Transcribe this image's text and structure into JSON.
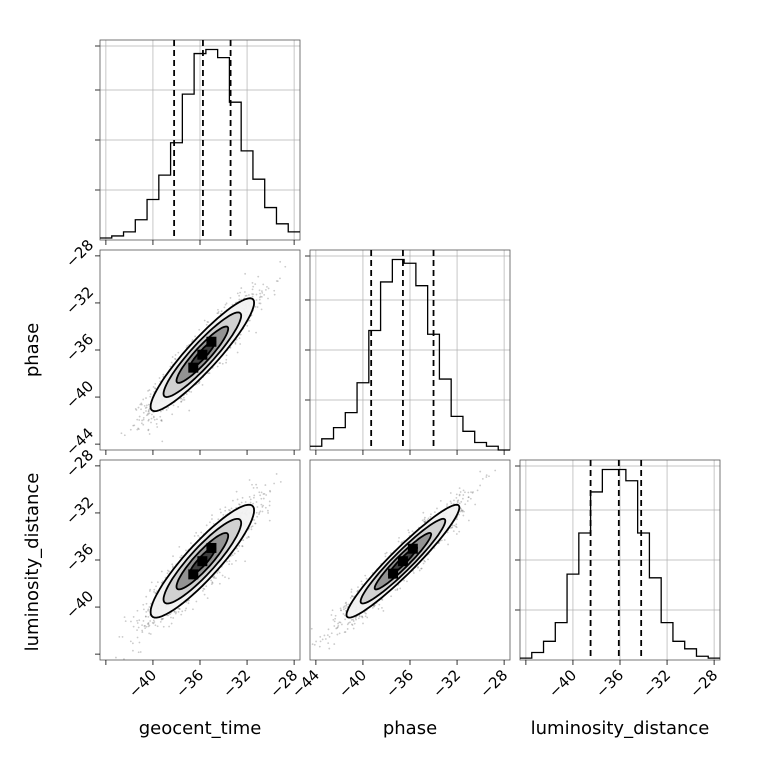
{
  "chart_data": {
    "type": "corner",
    "parameters": [
      "geocent_time",
      "phase",
      "luminosity_distance"
    ],
    "axis_range": [
      -44.5,
      -27.5
    ],
    "tick_values": [
      -44,
      -40,
      -36,
      -32,
      -28
    ],
    "tick_labels": [
      "−44",
      "−40",
      "−36",
      "−32",
      "−28"
    ],
    "grid": true,
    "diagonal": [
      {
        "parameter": "geocent_time",
        "bin_edges": [
          -44.5,
          -43.5,
          -42.5,
          -41.5,
          -40.5,
          -39.5,
          -38.5,
          -37.5,
          -36.5,
          -35.5,
          -34.5,
          -33.5,
          -32.5,
          -31.5,
          -30.5,
          -29.5,
          -28.5,
          -27.5
        ],
        "counts": [
          0.5,
          1,
          2,
          5,
          10,
          16,
          24,
          36,
          46,
          47,
          45,
          34,
          22,
          15,
          8,
          4,
          2
        ],
        "quantiles": [
          -38.2,
          -35.75,
          -33.4
        ]
      },
      {
        "parameter": "phase",
        "bin_edges": [
          -44.5,
          -43.5,
          -42.5,
          -41.5,
          -40.5,
          -39.5,
          -38.5,
          -37.5,
          -36.5,
          -35.5,
          -34.5,
          -33.5,
          -32.5,
          -31.5,
          -30.5,
          -29.5,
          -28.5,
          -27.5
        ],
        "counts": [
          1,
          3,
          6,
          10,
          18,
          32,
          45,
          51,
          50,
          44,
          31,
          19,
          9,
          5,
          2,
          1,
          0
        ],
        "quantiles": [
          -39.3,
          -36.6,
          -34.0
        ]
      },
      {
        "parameter": "luminosity_distance",
        "bin_edges": [
          -44.5,
          -43.5,
          -42.5,
          -41.5,
          -40.5,
          -39.5,
          -38.5,
          -37.5,
          -36.5,
          -35.5,
          -34.5,
          -33.5,
          -32.5,
          -31.5,
          -30.5,
          -29.5,
          -28.5,
          -27.5
        ],
        "counts": [
          0.5,
          2,
          5,
          10,
          23,
          34,
          45,
          51,
          51,
          48,
          34,
          22,
          10,
          5,
          3,
          1,
          0.5
        ],
        "quantiles": [
          -38.5,
          -36.1,
          -34.2
        ]
      }
    ],
    "pairs": [
      {
        "x": "geocent_time",
        "y": "phase",
        "mean": [
          -35.8,
          -36.4
        ],
        "sd": [
          2.2,
          2.4
        ],
        "rho": 0.92
      },
      {
        "x": "geocent_time",
        "y": "luminosity_distance",
        "mean": [
          -35.8,
          -36.1
        ],
        "sd": [
          2.2,
          2.4
        ],
        "rho": 0.9
      },
      {
        "x": "phase",
        "y": "luminosity_distance",
        "mean": [
          -36.6,
          -36.1
        ],
        "sd": [
          2.4,
          2.4
        ],
        "rho": 0.95
      }
    ],
    "contour_levels_sigma": [
      0.5,
      1.0,
      1.5,
      2.0
    ]
  }
}
